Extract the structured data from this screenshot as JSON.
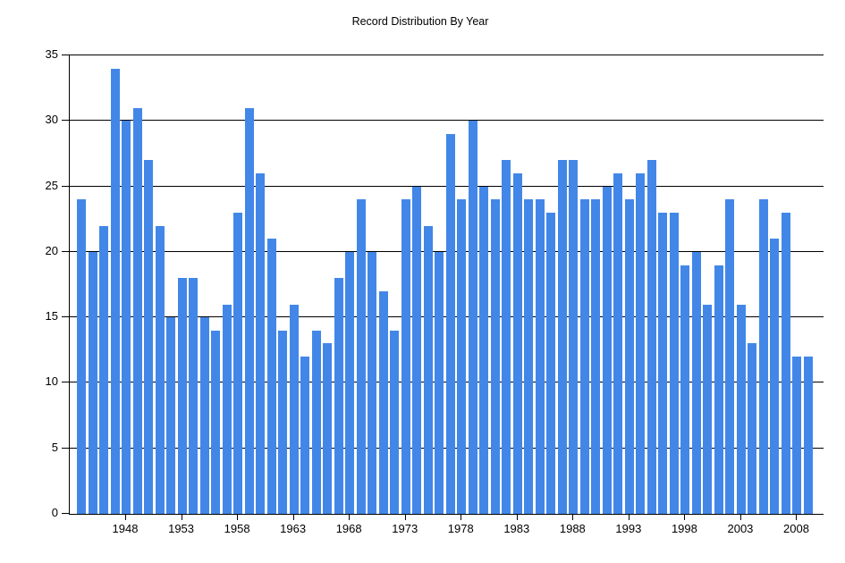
{
  "title": "Record Distribution By Year",
  "chart_data": {
    "type": "bar",
    "title": "Record Distribution By Year",
    "xlabel": "",
    "ylabel": "",
    "x": [
      1944,
      1945,
      1946,
      1947,
      1948,
      1949,
      1950,
      1951,
      1952,
      1953,
      1954,
      1955,
      1956,
      1957,
      1958,
      1959,
      1960,
      1961,
      1962,
      1963,
      1964,
      1965,
      1966,
      1967,
      1968,
      1969,
      1970,
      1971,
      1972,
      1973,
      1974,
      1975,
      1976,
      1977,
      1978,
      1979,
      1980,
      1981,
      1982,
      1983,
      1984,
      1985,
      1986,
      1987,
      1988,
      1989,
      1990,
      1991,
      1992,
      1993,
      1994,
      1995,
      1996,
      1997,
      1998,
      1999,
      2000,
      2001,
      2002,
      2003,
      2004,
      2005,
      2006,
      2007,
      2008,
      2009
    ],
    "values": [
      24,
      20,
      22,
      34,
      30,
      31,
      27,
      22,
      15,
      18,
      18,
      15,
      14,
      16,
      23,
      31,
      26,
      21,
      14,
      16,
      12,
      14,
      13,
      18,
      20,
      24,
      20,
      17,
      14,
      24,
      25,
      22,
      20,
      29,
      24,
      30,
      25,
      24,
      27,
      26,
      24,
      24,
      23,
      27,
      27,
      24,
      24,
      25,
      26,
      24,
      26,
      27,
      23,
      23,
      19,
      20,
      16,
      19,
      24,
      16,
      13,
      24,
      21,
      23,
      12,
      12
    ],
    "ylim": [
      0,
      35
    ],
    "yticks": [
      0,
      5,
      10,
      15,
      20,
      25,
      30,
      35
    ],
    "xticks": [
      1948,
      1953,
      1958,
      1963,
      1968,
      1973,
      1978,
      1983,
      1988,
      1993,
      1998,
      2003,
      2008
    ],
    "grid": true,
    "gridlines_under_bars": true,
    "legend": "none",
    "bar_color": "#4287e8",
    "axis_color": "#000000",
    "text_color": "#000000",
    "background_color": "#ffffff"
  }
}
